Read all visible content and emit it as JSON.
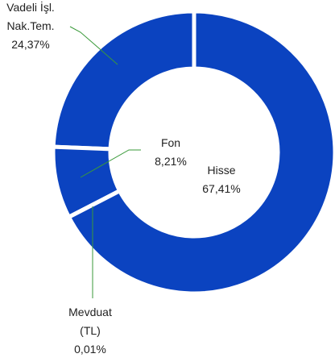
{
  "chart_data": {
    "type": "donut",
    "categories": [
      "Hisse",
      "Mevduat (TL)",
      "Fon",
      "Vadeli İşl. Nak.Tem."
    ],
    "values": [
      67.41,
      0.01,
      8.21,
      24.37
    ],
    "value_labels": [
      "67,41%",
      "0,01%",
      "8,21%",
      "24,37%"
    ],
    "color": "#0b43c0"
  }
}
